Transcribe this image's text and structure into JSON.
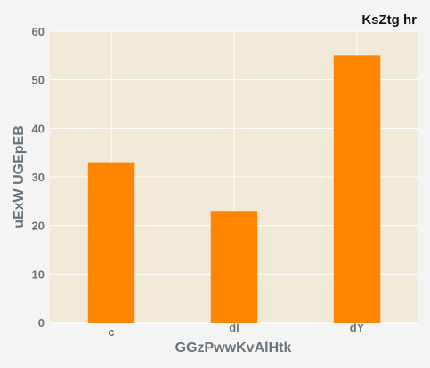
{
  "chart_data": {
    "type": "bar",
    "title": "KsZtg hr",
    "xlabel": "GGzPwwKvAlHtk",
    "ylabel": "uExW UGEpEB",
    "categories": [
      "c",
      "dl",
      "dY"
    ],
    "values": [
      33,
      23,
      55
    ],
    "ylim": [
      0,
      60
    ],
    "yticks": [
      0,
      10,
      20,
      30,
      40,
      50,
      60
    ],
    "grid": true,
    "legend": "none",
    "colors": {
      "bar": "#ff8400",
      "plot_background": "#f0e9d8",
      "page_background": "#f4f4f4",
      "grid": "#ffffff",
      "tick_text": "#6a747c",
      "title_text": "#111111"
    }
  }
}
